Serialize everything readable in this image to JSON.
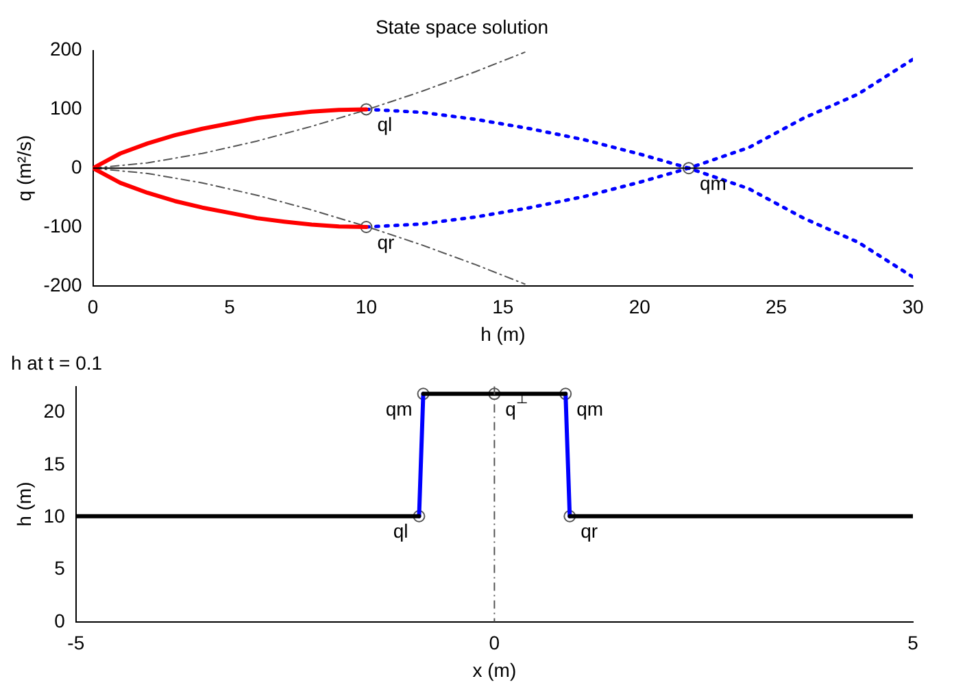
{
  "chart_data": [
    {
      "type": "line",
      "title": "State space solution",
      "xlabel": "h (m)",
      "ylabel": "q (m²/s)",
      "xlim": [
        0,
        30
      ],
      "ylim": [
        -200,
        200
      ],
      "xticks": [
        0,
        5,
        10,
        15,
        20,
        25,
        30
      ],
      "yticks": [
        -200,
        -100,
        0,
        100,
        200
      ],
      "series": [
        {
          "color": "#ff0000",
          "x": [
            0,
            1,
            2,
            3,
            4,
            5,
            6,
            7,
            8,
            9,
            10
          ],
          "values": [
            0,
            25,
            42,
            56,
            67,
            76,
            85,
            91,
            96,
            99,
            100
          ]
        },
        {
          "color": "#ff0000",
          "x": [
            0,
            1,
            2,
            3,
            4,
            5,
            6,
            7,
            8,
            9,
            10
          ],
          "values": [
            0,
            -25,
            -42,
            -56,
            -67,
            -76,
            -85,
            -91,
            -96,
            -99,
            -100
          ]
        },
        {
          "color": "#555555",
          "line_style": "dashed",
          "x": [
            0,
            2,
            4,
            6,
            8,
            10,
            12,
            14,
            15.8
          ],
          "values": [
            0,
            9,
            25,
            46,
            71,
            99,
            130,
            164,
            197
          ]
        },
        {
          "color": "#555555",
          "line_style": "dashed",
          "x": [
            0,
            2,
            4,
            6,
            8,
            10,
            12,
            14,
            15.8
          ],
          "values": [
            0,
            -9,
            -25,
            -46,
            -71,
            -99,
            -130,
            -164,
            -197
          ]
        },
        {
          "color": "#0000ff",
          "line_style": "dotted",
          "x": [
            10,
            12,
            14,
            16,
            18,
            20,
            21.8,
            24,
            26,
            28,
            30
          ],
          "values": [
            100,
            95,
            83,
            67,
            48,
            24,
            0,
            -35,
            -85,
            -126,
            -185
          ]
        },
        {
          "color": "#0000ff",
          "line_style": "dotted",
          "x": [
            10,
            12,
            14,
            16,
            18,
            20,
            21.8,
            24,
            26,
            28,
            30
          ],
          "values": [
            -100,
            -95,
            -83,
            -67,
            -48,
            -24,
            0,
            35,
            85,
            126,
            185
          ]
        },
        {
          "type": "scatter",
          "color": "#555555",
          "marker": "circle",
          "x": [
            10,
            10,
            21.8
          ],
          "values": [
            100,
            -100,
            0
          ]
        }
      ],
      "ref_lines": [
        {
          "axis": "y",
          "value": 0,
          "color": "#000000",
          "line_style": "solid"
        }
      ],
      "annotations": [
        {
          "text": "ql",
          "x": 10,
          "y": 100
        },
        {
          "text": "qr",
          "x": 10,
          "y": -100
        },
        {
          "text": "qm",
          "x": 21.8,
          "y": 0
        }
      ]
    },
    {
      "type": "line",
      "title": "h at t = 0.1",
      "xlabel": "x (m)",
      "ylabel": "h (m)",
      "xlim": [
        -5,
        5
      ],
      "ylim": [
        0,
        22.5
      ],
      "xticks": [
        -5,
        0,
        5
      ],
      "yticks": [
        0,
        5,
        10,
        15,
        20
      ],
      "series": [
        {
          "color": "#000000",
          "x": [
            -5,
            -0.9
          ],
          "values": [
            10.1,
            10.1
          ]
        },
        {
          "color": "#000000",
          "x": [
            -0.85,
            0.85
          ],
          "values": [
            21.8,
            21.8
          ]
        },
        {
          "color": "#000000",
          "x": [
            0.9,
            5
          ],
          "values": [
            10.1,
            10.1
          ]
        },
        {
          "color": "#0000ff",
          "x": [
            -0.9,
            -0.85
          ],
          "values": [
            10.1,
            21.8
          ]
        },
        {
          "color": "#0000ff",
          "x": [
            0.85,
            0.9
          ],
          "values": [
            21.8,
            10.1
          ]
        },
        {
          "type": "scatter",
          "color": "#555555",
          "marker": "circle",
          "x": [
            -0.9,
            -0.85,
            0,
            0.85,
            0.9
          ],
          "values": [
            10.1,
            21.8,
            21.8,
            21.8,
            10.1
          ]
        }
      ],
      "ref_lines": [
        {
          "axis": "x",
          "value": 0,
          "color": "#555555",
          "line_style": "dashed"
        }
      ],
      "annotations": [
        {
          "text": "qm",
          "x": -0.85,
          "y": 21.8
        },
        {
          "text": "q$^{⊥}$",
          "x": 0,
          "y": 21.8
        },
        {
          "text": "qm",
          "x": 0.85,
          "y": 21.8
        },
        {
          "text": "ql",
          "x": -0.9,
          "y": 10.1
        },
        {
          "text": "qr",
          "x": 0.9,
          "y": 10.1
        }
      ]
    }
  ]
}
